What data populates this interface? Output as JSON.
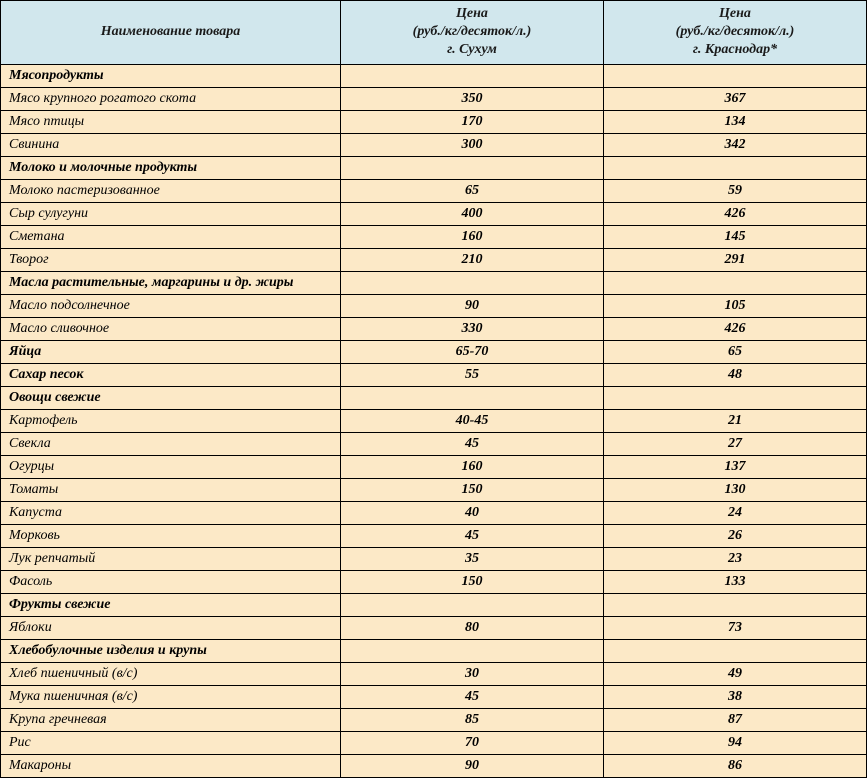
{
  "colors": {
    "header_bg": "#d1e7ed",
    "row_bg": "#fce9c7",
    "border": "#000000",
    "text": "#1a1a1a"
  },
  "columns": {
    "col1_header": "Наименование товара",
    "col2_header_line1": "Цена",
    "col2_header_line2": "(руб./кг/десяток/л.)",
    "col2_header_line3": "г. Сухум",
    "col3_header_line1": "Цена",
    "col3_header_line2": "(руб./кг/десяток/л.)",
    "col3_header_line3": "г. Краснодар*"
  },
  "rows": [
    {
      "type": "category",
      "name": "Мясопродукты",
      "p1": "",
      "p2": ""
    },
    {
      "type": "item",
      "name": "Мясо крупного рогатого скота",
      "p1": "350",
      "p2": "367"
    },
    {
      "type": "item",
      "name": "Мясо птицы",
      "p1": "170",
      "p2": "134"
    },
    {
      "type": "item",
      "name": "Свинина",
      "p1": "300",
      "p2": "342"
    },
    {
      "type": "category",
      "name": "Молоко и молочные продукты",
      "p1": "",
      "p2": ""
    },
    {
      "type": "item",
      "name": "Молоко пастеризованное",
      "p1": "65",
      "p2": "59"
    },
    {
      "type": "item",
      "name": "Сыр сулугуни",
      "p1": "400",
      "p2": "426"
    },
    {
      "type": "item",
      "name": "Сметана",
      "p1": "160",
      "p2": "145"
    },
    {
      "type": "item",
      "name": "Творог",
      "p1": "210",
      "p2": "291"
    },
    {
      "type": "category",
      "name": "Масла растительные, маргарины и др. жиры",
      "p1": "",
      "p2": ""
    },
    {
      "type": "item",
      "name": "Масло подсолнечное",
      "p1": "90",
      "p2": "105"
    },
    {
      "type": "item",
      "name": "Масло сливочное",
      "p1": "330",
      "p2": "426"
    },
    {
      "type": "category",
      "name": "Яйца",
      "p1": "65-70",
      "p2": "65"
    },
    {
      "type": "category",
      "name": "Сахар песок",
      "p1": "55",
      "p2": "48"
    },
    {
      "type": "category",
      "name": "Овощи свежие",
      "p1": "",
      "p2": ""
    },
    {
      "type": "item",
      "name": "Картофель",
      "p1": "40-45",
      "p2": "21"
    },
    {
      "type": "item",
      "name": "Свекла",
      "p1": "45",
      "p2": "27"
    },
    {
      "type": "item",
      "name": "Огурцы",
      "p1": "160",
      "p2": "137"
    },
    {
      "type": "item",
      "name": "Томаты",
      "p1": "150",
      "p2": "130"
    },
    {
      "type": "item",
      "name": "Капуста",
      "p1": "40",
      "p2": "24"
    },
    {
      "type": "item",
      "name": "Морковь",
      "p1": "45",
      "p2": "26"
    },
    {
      "type": "item",
      "name": "Лук репчатый",
      "p1": "35",
      "p2": "23"
    },
    {
      "type": "item",
      "name": "Фасоль",
      "p1": "150",
      "p2": "133"
    },
    {
      "type": "category",
      "name": "Фрукты свежие",
      "p1": "",
      "p2": ""
    },
    {
      "type": "item",
      "name": "Яблоки",
      "p1": "80",
      "p2": "73"
    },
    {
      "type": "category",
      "name": "Хлебобулочные изделия и крупы",
      "p1": "",
      "p2": ""
    },
    {
      "type": "item",
      "name": "Хлеб пшеничный (в/с)",
      "p1": "30",
      "p2": "49"
    },
    {
      "type": "item",
      "name": "Мука пшеничная  (в/с)",
      "p1": "45",
      "p2": "38"
    },
    {
      "type": "item",
      "name": "Крупа гречневая",
      "p1": "85",
      "p2": "87"
    },
    {
      "type": "item",
      "name": "Рис",
      "p1": "70",
      "p2": "94"
    },
    {
      "type": "item",
      "name": "Макароны",
      "p1": "90",
      "p2": "86"
    }
  ]
}
